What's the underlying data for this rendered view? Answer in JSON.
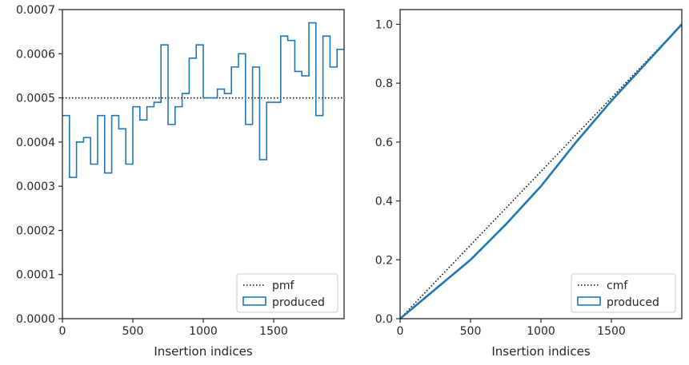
{
  "colors": {
    "produced": "#1f77b4",
    "reference": "#000000",
    "axes": "#262626",
    "legend_border": "#cccccc"
  },
  "chart_data": [
    {
      "type": "line",
      "xlabel": "Insertion indices",
      "ylabel": "",
      "xlim": [
        0,
        2000
      ],
      "ylim": [
        0,
        0.0007
      ],
      "xticks": [
        0,
        500,
        1000,
        1500
      ],
      "yticks": [
        0.0,
        0.0001,
        0.0002,
        0.0003,
        0.0004,
        0.0005,
        0.0006,
        0.0007
      ],
      "ytick_labels": [
        "0.0000",
        "0.0001",
        "0.0002",
        "0.0003",
        "0.0004",
        "0.0005",
        "0.0006",
        "0.0007"
      ],
      "legend_position": "lower right",
      "grid": false,
      "series": [
        {
          "name": "pmf",
          "style": "dotted",
          "x": [
            0,
            2000
          ],
          "y": [
            0.0005,
            0.0005
          ]
        },
        {
          "name": "produced",
          "style": "step",
          "bin_width": 50,
          "values": [
            0.00046,
            0.00032,
            0.0004,
            0.00041,
            0.00035,
            0.00046,
            0.00033,
            0.00046,
            0.00043,
            0.00035,
            0.00048,
            0.00045,
            0.00048,
            0.00049,
            0.00062,
            0.00044,
            0.00048,
            0.00051,
            0.00059,
            0.00062,
            0.0005,
            0.0005,
            0.00052,
            0.00051,
            0.00057,
            0.0006,
            0.00044,
            0.00057,
            0.00036,
            0.00049,
            0.00049,
            0.00064,
            0.00063,
            0.00056,
            0.00055,
            0.00067,
            0.00046,
            0.00064,
            0.00057,
            0.00061
          ]
        }
      ]
    },
    {
      "type": "line",
      "xlabel": "Insertion indices",
      "ylabel": "",
      "xlim": [
        0,
        2000
      ],
      "ylim": [
        0,
        1.05
      ],
      "xticks": [
        0,
        500,
        1000,
        1500
      ],
      "yticks": [
        0.0,
        0.2,
        0.4,
        0.6,
        0.8,
        1.0
      ],
      "ytick_labels": [
        "0.0",
        "0.2",
        "0.4",
        "0.6",
        "0.8",
        "1.0"
      ],
      "legend_position": "lower right",
      "grid": false,
      "series": [
        {
          "name": "cmf",
          "style": "dotted",
          "x": [
            0,
            2000
          ],
          "y": [
            0,
            1.0
          ]
        },
        {
          "name": "produced",
          "style": "step",
          "x": [
            0,
            250,
            500,
            750,
            1000,
            1250,
            1500,
            1750,
            2000
          ],
          "y": [
            0,
            0.1,
            0.2,
            0.32,
            0.45,
            0.6,
            0.74,
            0.87,
            1.0
          ]
        }
      ]
    }
  ]
}
